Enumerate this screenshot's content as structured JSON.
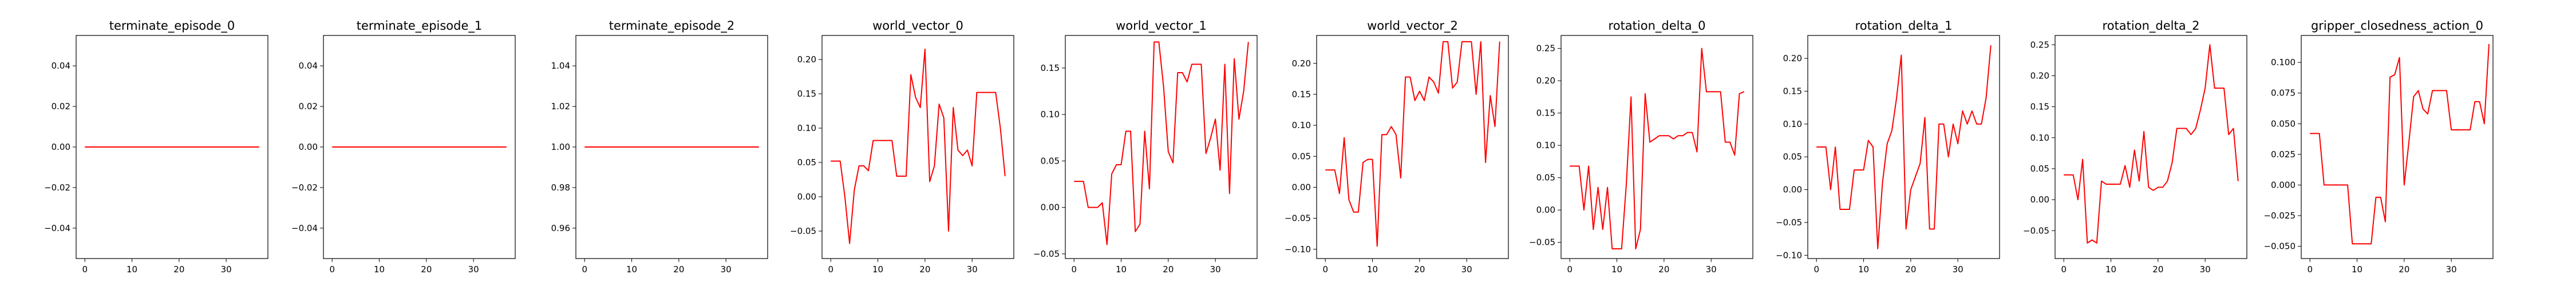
{
  "chart_data": [
    {
      "type": "line",
      "title": "terminate_episode_0",
      "xlabel": "",
      "ylabel": "",
      "xlim": [
        -1.85,
        38.85
      ],
      "ylim": [
        -0.055,
        0.055
      ],
      "xticks": [
        0,
        10,
        20,
        30
      ],
      "yticks": [
        -0.04,
        -0.02,
        0.0,
        0.02,
        0.04
      ],
      "xtick_labels": [
        "0",
        "10",
        "20",
        "30"
      ],
      "ytick_labels": [
        "−0.04",
        "−0.02",
        "0.00",
        "0.02",
        "0.04"
      ],
      "grid": false,
      "color": "#ff0000",
      "series": [
        {
          "x": [
            0,
            37
          ],
          "values": [
            0,
            0
          ]
        }
      ]
    },
    {
      "type": "line",
      "title": "terminate_episode_1",
      "xlabel": "",
      "ylabel": "",
      "xlim": [
        -1.85,
        38.85
      ],
      "ylim": [
        -0.055,
        0.055
      ],
      "xticks": [
        0,
        10,
        20,
        30
      ],
      "yticks": [
        -0.04,
        -0.02,
        0.0,
        0.02,
        0.04
      ],
      "xtick_labels": [
        "0",
        "10",
        "20",
        "30"
      ],
      "ytick_labels": [
        "−0.04",
        "−0.02",
        "0.00",
        "0.02",
        "0.04"
      ],
      "grid": false,
      "color": "#ff0000",
      "series": [
        {
          "x": [
            0,
            37
          ],
          "values": [
            0,
            0
          ]
        }
      ]
    },
    {
      "type": "line",
      "title": "terminate_episode_2",
      "xlabel": "",
      "ylabel": "",
      "xlim": [
        -1.85,
        38.85
      ],
      "ylim": [
        0.945,
        1.055
      ],
      "xticks": [
        0,
        10,
        20,
        30
      ],
      "yticks": [
        0.96,
        0.98,
        1.0,
        1.02,
        1.04
      ],
      "xtick_labels": [
        "0",
        "10",
        "20",
        "30"
      ],
      "ytick_labels": [
        "0.96",
        "0.98",
        "1.00",
        "1.02",
        "1.04"
      ],
      "grid": false,
      "color": "#ff0000",
      "series": [
        {
          "x": [
            0,
            37
          ],
          "values": [
            1,
            1
          ]
        }
      ]
    },
    {
      "type": "line",
      "title": "world_vector_0",
      "xlabel": "",
      "ylabel": "",
      "xlim": [
        -1.85,
        38.85
      ],
      "ylim": [
        -0.09,
        0.235
      ],
      "xticks": [
        0,
        10,
        20,
        30
      ],
      "yticks": [
        -0.05,
        0.0,
        0.05,
        0.1,
        0.15,
        0.2
      ],
      "xtick_labels": [
        "0",
        "10",
        "20",
        "30"
      ],
      "ytick_labels": [
        "−0.05",
        "0.00",
        "0.05",
        "0.10",
        "0.15",
        "0.20"
      ],
      "grid": false,
      "color": "#ff0000",
      "series": [
        {
          "values": [
            0.052,
            0.052,
            0.052,
            0.0,
            -0.068,
            0.01,
            0.045,
            0.045,
            0.038,
            0.082,
            0.082,
            0.082,
            0.082,
            0.082,
            0.03,
            0.03,
            0.03,
            0.178,
            0.145,
            0.13,
            0.215,
            0.022,
            0.045,
            0.135,
            0.115,
            -0.05,
            0.13,
            0.068,
            0.06,
            0.068,
            0.045,
            0.152,
            0.152,
            0.152,
            0.152,
            0.152,
            0.1,
            0.03
          ]
        }
      ]
    },
    {
      "type": "line",
      "title": "world_vector_1",
      "xlabel": "",
      "ylabel": "",
      "xlim": [
        -1.85,
        38.85
      ],
      "ylim": [
        -0.055,
        0.185
      ],
      "xticks": [
        0,
        10,
        20,
        30
      ],
      "yticks": [
        -0.05,
        0.0,
        0.05,
        0.1,
        0.15
      ],
      "xtick_labels": [
        "0",
        "10",
        "20",
        "30"
      ],
      "ytick_labels": [
        "−0.05",
        "0.00",
        "0.05",
        "0.10",
        "0.15"
      ],
      "grid": false,
      "color": "#ff0000",
      "series": [
        {
          "values": [
            0.028,
            0.028,
            0.028,
            0.0,
            0.0,
            0.0,
            0.005,
            -0.04,
            0.036,
            0.046,
            0.046,
            0.082,
            0.082,
            -0.026,
            -0.018,
            0.082,
            0.02,
            0.178,
            0.178,
            0.13,
            0.06,
            0.048,
            0.145,
            0.145,
            0.135,
            0.154,
            0.154,
            0.154,
            0.058,
            0.075,
            0.095,
            0.04,
            0.154,
            0.015,
            0.16,
            0.095,
            0.125,
            0.178
          ]
        }
      ]
    },
    {
      "type": "line",
      "title": "world_vector_2",
      "xlabel": "",
      "ylabel": "",
      "xlim": [
        -1.85,
        38.85
      ],
      "ylim": [
        -0.115,
        0.245
      ],
      "xticks": [
        0,
        10,
        20,
        30
      ],
      "yticks": [
        -0.1,
        -0.05,
        0.0,
        0.05,
        0.1,
        0.15,
        0.2
      ],
      "xtick_labels": [
        "0",
        "10",
        "20",
        "30"
      ],
      "ytick_labels": [
        "−0.10",
        "−0.05",
        "0.00",
        "0.05",
        "0.10",
        "0.15",
        "0.20"
      ],
      "grid": false,
      "color": "#ff0000",
      "series": [
        {
          "values": [
            0.028,
            0.028,
            0.028,
            -0.01,
            0.08,
            -0.02,
            -0.04,
            -0.04,
            0.04,
            0.045,
            0.045,
            -0.095,
            0.085,
            0.085,
            0.098,
            0.085,
            0.015,
            0.178,
            0.178,
            0.14,
            0.155,
            0.14,
            0.178,
            0.17,
            0.152,
            0.235,
            0.235,
            0.16,
            0.17,
            0.235,
            0.235,
            0.235,
            0.15,
            0.235,
            0.04,
            0.148,
            0.098,
            0.235
          ]
        }
      ]
    },
    {
      "type": "line",
      "title": "rotation_delta_0",
      "xlabel": "",
      "ylabel": "",
      "xlim": [
        -1.85,
        38.85
      ],
      "ylim": [
        -0.075,
        0.27
      ],
      "xticks": [
        0,
        10,
        20,
        30
      ],
      "yticks": [
        -0.05,
        0.0,
        0.05,
        0.1,
        0.15,
        0.2,
        0.25
      ],
      "xtick_labels": [
        "0",
        "10",
        "20",
        "30"
      ],
      "ytick_labels": [
        "−0.05",
        "0.00",
        "0.05",
        "0.10",
        "0.15",
        "0.20",
        "0.25"
      ],
      "grid": false,
      "color": "#ff0000",
      "series": [
        {
          "values": [
            0.068,
            0.068,
            0.068,
            0.0,
            0.068,
            -0.03,
            0.035,
            -0.03,
            0.035,
            -0.06,
            -0.06,
            -0.06,
            0.04,
            0.175,
            -0.06,
            -0.03,
            0.18,
            0.105,
            0.11,
            0.115,
            0.115,
            0.115,
            0.11,
            0.115,
            0.115,
            0.12,
            0.12,
            0.09,
            0.25,
            0.183,
            0.183,
            0.183,
            0.183,
            0.105,
            0.105,
            0.085,
            0.18,
            0.183
          ]
        }
      ]
    },
    {
      "type": "line",
      "title": "rotation_delta_1",
      "xlabel": "",
      "ylabel": "",
      "xlim": [
        -1.85,
        38.85
      ],
      "ylim": [
        -0.105,
        0.235
      ],
      "xticks": [
        0,
        10,
        20,
        30
      ],
      "yticks": [
        -0.1,
        -0.05,
        0.0,
        0.05,
        0.1,
        0.15,
        0.2
      ],
      "xtick_labels": [
        "0",
        "10",
        "20",
        "30"
      ],
      "ytick_labels": [
        "−0.10",
        "−0.05",
        "0.00",
        "0.05",
        "0.10",
        "0.15",
        "0.20"
      ],
      "grid": false,
      "color": "#ff0000",
      "series": [
        {
          "values": [
            0.065,
            0.065,
            0.065,
            0.0,
            0.065,
            -0.03,
            -0.03,
            -0.03,
            0.03,
            0.03,
            0.03,
            0.075,
            0.065,
            -0.09,
            0.01,
            0.07,
            0.09,
            0.14,
            0.205,
            -0.06,
            0.0,
            0.02,
            0.04,
            0.11,
            -0.06,
            -0.06,
            0.1,
            0.1,
            0.05,
            0.1,
            0.07,
            0.12,
            0.1,
            0.12,
            0.1,
            0.1,
            0.14,
            0.22
          ]
        }
      ]
    },
    {
      "type": "line",
      "title": "rotation_delta_2",
      "xlabel": "",
      "ylabel": "",
      "xlim": [
        -1.85,
        38.85
      ],
      "ylim": [
        -0.095,
        0.265
      ],
      "xticks": [
        0,
        10,
        20,
        30
      ],
      "yticks": [
        -0.05,
        0.0,
        0.05,
        0.1,
        0.15,
        0.2,
        0.25
      ],
      "xtick_labels": [
        "0",
        "10",
        "20",
        "30"
      ],
      "ytick_labels": [
        "−0.05",
        "0.00",
        "0.05",
        "0.10",
        "0.15",
        "0.20",
        "0.25"
      ],
      "grid": false,
      "color": "#ff0000",
      "series": [
        {
          "values": [
            0.04,
            0.04,
            0.04,
            0.0,
            0.065,
            -0.07,
            -0.065,
            -0.07,
            0.03,
            0.025,
            0.025,
            0.025,
            0.025,
            0.055,
            0.02,
            0.08,
            0.03,
            0.11,
            0.02,
            0.015,
            0.02,
            0.02,
            0.03,
            0.06,
            0.115,
            0.115,
            0.115,
            0.105,
            0.115,
            0.145,
            0.18,
            0.25,
            0.18,
            0.18,
            0.18,
            0.105,
            0.115,
            0.03
          ]
        }
      ]
    },
    {
      "type": "line",
      "title": "gripper_closedness_action_0",
      "xlabel": "",
      "ylabel": "",
      "xlim": [
        -1.85,
        38.85
      ],
      "ylim": [
        -0.06,
        0.122
      ],
      "xticks": [
        0,
        10,
        20,
        30
      ],
      "yticks": [
        -0.05,
        -0.025,
        0.0,
        0.025,
        0.05,
        0.075,
        0.1
      ],
      "xtick_labels": [
        "0",
        "10",
        "20",
        "30"
      ],
      "ytick_labels": [
        "−0.050",
        "−0.025",
        "0.000",
        "0.025",
        "0.050",
        "0.075",
        "0.100"
      ],
      "grid": false,
      "color": "#ff0000",
      "series": [
        {
          "values": [
            0.042,
            0.042,
            0.042,
            0.0,
            0.0,
            0.0,
            0.0,
            0.0,
            0.0,
            -0.048,
            -0.048,
            -0.048,
            -0.048,
            -0.048,
            -0.01,
            -0.01,
            -0.03,
            0.088,
            0.09,
            0.104,
            0.0,
            0.035,
            0.072,
            0.077,
            0.062,
            0.058,
            0.077,
            0.077,
            0.077,
            0.077,
            0.045,
            0.045,
            0.045,
            0.045,
            0.045,
            0.068,
            0.068,
            0.05,
            0.115
          ]
        }
      ]
    }
  ]
}
